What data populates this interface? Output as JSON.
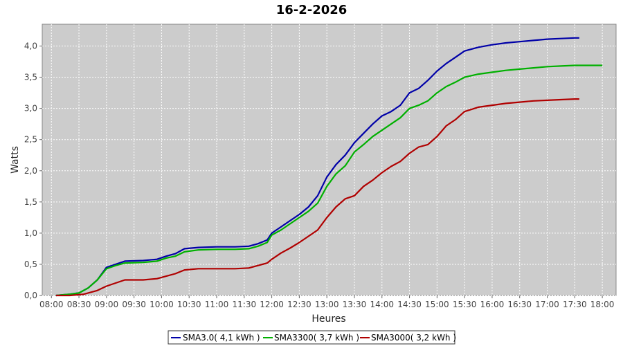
{
  "chart_data": {
    "type": "line",
    "title": "16-2-2026",
    "xlabel": "Heures",
    "ylabel": "Watts",
    "ylim": [
      0,
      4.35
    ],
    "xlim_minutes": [
      470,
      1095
    ],
    "x_ticks": [
      "08:00",
      "08:30",
      "09:00",
      "09:30",
      "10:00",
      "10:30",
      "11:00",
      "11:30",
      "12:00",
      "12:30",
      "13:00",
      "13:30",
      "14:00",
      "14:30",
      "15:00",
      "15:30",
      "16:00",
      "16:30",
      "17:00",
      "17:30",
      "18:00"
    ],
    "y_ticks": [
      "0,0",
      "0,5",
      "1,0",
      "1,5",
      "2,0",
      "2,5",
      "3,0",
      "3,5",
      "4,0"
    ],
    "grid": true,
    "legend_position": "bottom",
    "series": [
      {
        "name": "SMA3.0( 4,1 kWh )",
        "color": "#0000a8",
        "points": [
          [
            "08:05",
            0.0
          ],
          [
            "08:20",
            0.02
          ],
          [
            "08:30",
            0.04
          ],
          [
            "08:40",
            0.12
          ],
          [
            "08:50",
            0.25
          ],
          [
            "09:00",
            0.45
          ],
          [
            "09:10",
            0.5
          ],
          [
            "09:20",
            0.55
          ],
          [
            "09:40",
            0.56
          ],
          [
            "09:55",
            0.58
          ],
          [
            "10:05",
            0.63
          ],
          [
            "10:15",
            0.67
          ],
          [
            "10:25",
            0.75
          ],
          [
            "10:40",
            0.77
          ],
          [
            "11:00",
            0.78
          ],
          [
            "11:20",
            0.78
          ],
          [
            "11:35",
            0.79
          ],
          [
            "11:45",
            0.83
          ],
          [
            "11:55",
            0.89
          ],
          [
            "12:00",
            1.0
          ],
          [
            "12:10",
            1.1
          ],
          [
            "12:20",
            1.2
          ],
          [
            "12:30",
            1.3
          ],
          [
            "12:40",
            1.42
          ],
          [
            "12:50",
            1.6
          ],
          [
            "13:00",
            1.9
          ],
          [
            "13:10",
            2.1
          ],
          [
            "13:20",
            2.25
          ],
          [
            "13:30",
            2.45
          ],
          [
            "13:40",
            2.6
          ],
          [
            "13:50",
            2.75
          ],
          [
            "14:00",
            2.88
          ],
          [
            "14:10",
            2.95
          ],
          [
            "14:20",
            3.05
          ],
          [
            "14:30",
            3.25
          ],
          [
            "14:40",
            3.32
          ],
          [
            "14:50",
            3.45
          ],
          [
            "15:00",
            3.6
          ],
          [
            "15:10",
            3.72
          ],
          [
            "15:20",
            3.82
          ],
          [
            "15:30",
            3.92
          ],
          [
            "15:45",
            3.98
          ],
          [
            "16:00",
            4.02
          ],
          [
            "16:15",
            4.05
          ],
          [
            "16:30",
            4.07
          ],
          [
            "16:45",
            4.09
          ],
          [
            "17:00",
            4.11
          ],
          [
            "17:15",
            4.12
          ],
          [
            "17:30",
            4.13
          ],
          [
            "17:35",
            4.13
          ]
        ]
      },
      {
        "name": "SMA3300( 3,7 kWh )",
        "color": "#00b000",
        "points": [
          [
            "08:05",
            0.0
          ],
          [
            "08:20",
            0.02
          ],
          [
            "08:30",
            0.04
          ],
          [
            "08:40",
            0.12
          ],
          [
            "08:50",
            0.25
          ],
          [
            "09:00",
            0.43
          ],
          [
            "09:10",
            0.48
          ],
          [
            "09:20",
            0.52
          ],
          [
            "09:40",
            0.53
          ],
          [
            "09:55",
            0.55
          ],
          [
            "10:05",
            0.6
          ],
          [
            "10:15",
            0.63
          ],
          [
            "10:25",
            0.7
          ],
          [
            "10:40",
            0.73
          ],
          [
            "11:00",
            0.74
          ],
          [
            "11:20",
            0.74
          ],
          [
            "11:35",
            0.75
          ],
          [
            "11:45",
            0.79
          ],
          [
            "11:55",
            0.85
          ],
          [
            "12:00",
            0.97
          ],
          [
            "12:10",
            1.05
          ],
          [
            "12:20",
            1.15
          ],
          [
            "12:30",
            1.25
          ],
          [
            "12:40",
            1.35
          ],
          [
            "12:50",
            1.48
          ],
          [
            "13:00",
            1.75
          ],
          [
            "13:10",
            1.95
          ],
          [
            "13:20",
            2.08
          ],
          [
            "13:30",
            2.3
          ],
          [
            "13:40",
            2.42
          ],
          [
            "13:50",
            2.55
          ],
          [
            "14:00",
            2.65
          ],
          [
            "14:10",
            2.75
          ],
          [
            "14:20",
            2.85
          ],
          [
            "14:30",
            3.0
          ],
          [
            "14:40",
            3.05
          ],
          [
            "14:50",
            3.12
          ],
          [
            "15:00",
            3.25
          ],
          [
            "15:10",
            3.35
          ],
          [
            "15:20",
            3.42
          ],
          [
            "15:30",
            3.5
          ],
          [
            "15:45",
            3.55
          ],
          [
            "16:00",
            3.58
          ],
          [
            "16:15",
            3.61
          ],
          [
            "16:30",
            3.63
          ],
          [
            "16:45",
            3.65
          ],
          [
            "17:00",
            3.67
          ],
          [
            "17:15",
            3.68
          ],
          [
            "17:30",
            3.69
          ],
          [
            "18:00",
            3.69
          ]
        ]
      },
      {
        "name": "SMA3000( 3,2 kWh )",
        "color": "#b00000",
        "points": [
          [
            "08:05",
            0.0
          ],
          [
            "08:20",
            0.0
          ],
          [
            "08:35",
            0.02
          ],
          [
            "08:50",
            0.08
          ],
          [
            "09:00",
            0.15
          ],
          [
            "09:10",
            0.2
          ],
          [
            "09:20",
            0.25
          ],
          [
            "09:40",
            0.25
          ],
          [
            "09:55",
            0.27
          ],
          [
            "10:05",
            0.31
          ],
          [
            "10:15",
            0.35
          ],
          [
            "10:25",
            0.41
          ],
          [
            "10:40",
            0.43
          ],
          [
            "11:00",
            0.43
          ],
          [
            "11:20",
            0.43
          ],
          [
            "11:35",
            0.44
          ],
          [
            "11:45",
            0.48
          ],
          [
            "11:55",
            0.52
          ],
          [
            "12:00",
            0.58
          ],
          [
            "12:10",
            0.68
          ],
          [
            "12:20",
            0.76
          ],
          [
            "12:30",
            0.85
          ],
          [
            "12:40",
            0.95
          ],
          [
            "12:50",
            1.05
          ],
          [
            "13:00",
            1.25
          ],
          [
            "13:10",
            1.42
          ],
          [
            "13:20",
            1.55
          ],
          [
            "13:30",
            1.6
          ],
          [
            "13:40",
            1.75
          ],
          [
            "13:50",
            1.85
          ],
          [
            "14:00",
            1.97
          ],
          [
            "14:10",
            2.07
          ],
          [
            "14:20",
            2.15
          ],
          [
            "14:30",
            2.28
          ],
          [
            "14:40",
            2.38
          ],
          [
            "14:50",
            2.42
          ],
          [
            "15:00",
            2.55
          ],
          [
            "15:10",
            2.72
          ],
          [
            "15:20",
            2.82
          ],
          [
            "15:30",
            2.95
          ],
          [
            "15:45",
            3.02
          ],
          [
            "16:00",
            3.05
          ],
          [
            "16:15",
            3.08
          ],
          [
            "16:30",
            3.1
          ],
          [
            "16:45",
            3.12
          ],
          [
            "17:00",
            3.13
          ],
          [
            "17:15",
            3.14
          ],
          [
            "17:30",
            3.15
          ],
          [
            "17:35",
            3.15
          ]
        ]
      }
    ]
  }
}
